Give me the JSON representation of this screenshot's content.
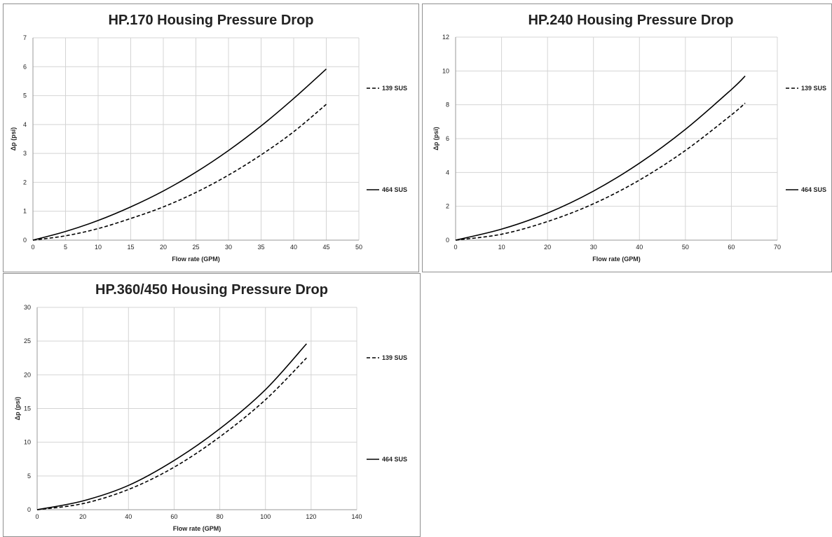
{
  "chart_data": [
    {
      "type": "line",
      "title": "HP.170 Housing Pressure Drop",
      "xlabel": "Flow rate (GPM)",
      "ylabel": "Δp (psi)",
      "xlim": [
        0,
        50
      ],
      "ylim": [
        0,
        7
      ],
      "xticks": [
        "0",
        "5",
        "10",
        "15",
        "20",
        "25",
        "30",
        "35",
        "40",
        "45",
        "50"
      ],
      "yticks": [
        "0",
        "1",
        "2",
        "3",
        "4",
        "5",
        "6",
        "7"
      ],
      "grid": true,
      "legend_position": "right",
      "series": [
        {
          "name": "139 SUS",
          "line_style": "dashed",
          "color": "#000000",
          "x": [
            0,
            5,
            10,
            15,
            20,
            25,
            30,
            35,
            40,
            45
          ],
          "y": [
            0,
            0.15,
            0.4,
            0.75,
            1.15,
            1.65,
            2.25,
            2.95,
            3.75,
            4.7
          ]
        },
        {
          "name": "464 SUS",
          "line_style": "solid",
          "color": "#000000",
          "x": [
            0,
            5,
            10,
            15,
            20,
            25,
            30,
            35,
            40,
            45
          ],
          "y": [
            0,
            0.3,
            0.68,
            1.15,
            1.7,
            2.35,
            3.1,
            3.95,
            4.9,
            5.92
          ]
        }
      ]
    },
    {
      "type": "line",
      "title": "HP.240 Housing Pressure Drop",
      "xlabel": "Flow rate (GPM)",
      "ylabel": "Δp (psi)",
      "xlim": [
        0,
        70
      ],
      "ylim": [
        0,
        12
      ],
      "xticks": [
        "0",
        "10",
        "20",
        "30",
        "40",
        "50",
        "60",
        "70"
      ],
      "yticks": [
        "0",
        "2",
        "4",
        "6",
        "8",
        "10",
        "12"
      ],
      "grid": true,
      "legend_position": "right",
      "series": [
        {
          "name": "139 SUS",
          "line_style": "dashed",
          "color": "#000000",
          "x": [
            0,
            10,
            20,
            30,
            40,
            50,
            60,
            63
          ],
          "y": [
            0,
            0.35,
            1.1,
            2.15,
            3.55,
            5.3,
            7.4,
            8.1
          ]
        },
        {
          "name": "464 SUS",
          "line_style": "solid",
          "color": "#000000",
          "x": [
            0,
            10,
            20,
            30,
            40,
            50,
            60,
            63
          ],
          "y": [
            0,
            0.65,
            1.6,
            2.9,
            4.55,
            6.55,
            8.9,
            9.7
          ]
        }
      ]
    },
    {
      "type": "line",
      "title": "HP.360/450 Housing Pressure Drop",
      "xlabel": "Flow rate (GPM)",
      "ylabel": "Δp (psi)",
      "xlim": [
        0,
        140
      ],
      "ylim": [
        0,
        30
      ],
      "xticks": [
        "0",
        "20",
        "40",
        "60",
        "80",
        "100",
        "120",
        "140"
      ],
      "yticks": [
        "0",
        "5",
        "10",
        "15",
        "20",
        "25",
        "30"
      ],
      "grid": true,
      "legend_position": "right",
      "series": [
        {
          "name": "139 SUS",
          "line_style": "dashed",
          "color": "#000000",
          "x": [
            0,
            20,
            40,
            60,
            80,
            100,
            118
          ],
          "y": [
            0,
            0.9,
            3.0,
            6.3,
            10.8,
            16.3,
            22.5
          ]
        },
        {
          "name": "464 SUS",
          "line_style": "solid",
          "color": "#000000",
          "x": [
            0,
            20,
            40,
            60,
            80,
            100,
            118
          ],
          "y": [
            0,
            1.3,
            3.6,
            7.3,
            12.0,
            17.8,
            24.6
          ]
        }
      ]
    }
  ]
}
